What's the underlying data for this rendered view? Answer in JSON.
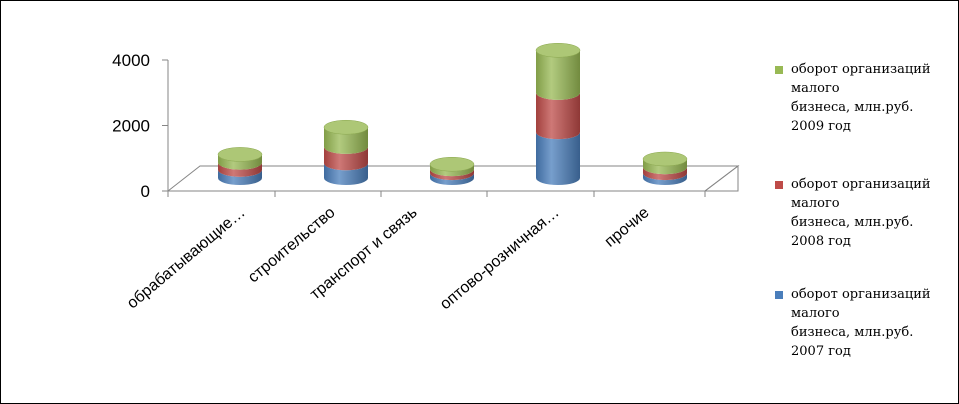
{
  "chart_data": {
    "type": "bar",
    "style": "stacked-3d-cylinder",
    "title": "",
    "xlabel": "",
    "ylabel": "",
    "categories": [
      "обрабатывающие…",
      "строительство",
      "транспорт и связь",
      "оптово-розничная…",
      "прочие"
    ],
    "series": [
      {
        "name": "оборот организаций малого бизнеса, млн.руб. 2007 год",
        "label_lines": [
          "оборот организаций",
          "малого",
          "бизнеса, млн.руб.",
          "2007 год"
        ],
        "color": "#4a7ebb",
        "values": [
          250,
          450,
          150,
          1400,
          150
        ]
      },
      {
        "name": "оборот организаций малого бизнеса, млн.руб. 2008 год",
        "label_lines": [
          "оборот организаций",
          "малого",
          "бизнеса, млн.руб.",
          "2008 год"
        ],
        "color": "#be4b48",
        "values": [
          220,
          500,
          120,
          1200,
          180
        ]
      },
      {
        "name": "оборот организаций малого бизнеса, млн.руб. 2009 год",
        "label_lines": [
          "оборот организаций",
          "малого",
          "бизнеса, млн.руб.",
          "2009 год"
        ],
        "color": "#98b954",
        "values": [
          250,
          600,
          150,
          1300,
          250
        ]
      }
    ],
    "y_ticks": [
      "0",
      "2000",
      "4000"
    ],
    "ylim": [
      0,
      4000
    ],
    "grid": false,
    "legend_position": "right"
  }
}
